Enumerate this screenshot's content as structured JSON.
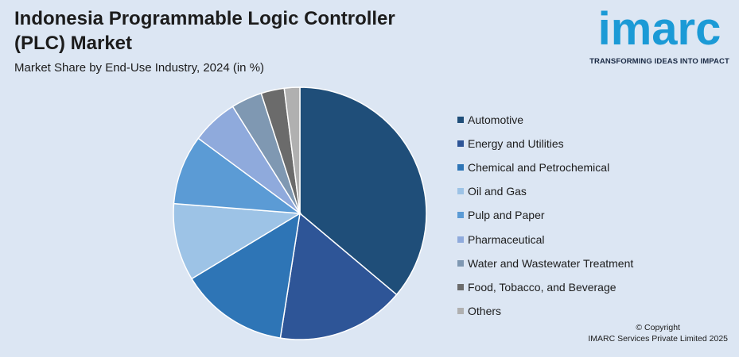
{
  "header": {
    "title_line1": "Indonesia Programmable Logic Controller",
    "title_line2": "(PLC) Market",
    "subtitle": "Market Share by End-Use Industry, 2024 (in %)"
  },
  "logo": {
    "word": "imarc",
    "tagline": "TRANSFORMING IDEAS INTO IMPACT",
    "color": "#1b9ad6"
  },
  "footer": {
    "copyright_line1": "© Copyright",
    "copyright_line2": "IMARC Services Private Limited 2025"
  },
  "chart_data": {
    "type": "pie",
    "title": "Market Share by End-Use Industry, 2024 (in %)",
    "legend_position": "right",
    "series": [
      {
        "name": "Automotive",
        "value": 36.5,
        "color": "#1f4e79"
      },
      {
        "name": "Energy and Utilities",
        "value": 16.5,
        "color": "#2e5597"
      },
      {
        "name": "Chemical and Petrochemical",
        "value": 14.0,
        "color": "#2e75b6"
      },
      {
        "name": "Oil and Gas",
        "value": 10.0,
        "color": "#9dc3e6"
      },
      {
        "name": "Pulp and Paper",
        "value": 9.0,
        "color": "#5b9bd5"
      },
      {
        "name": "Pharmaceutical",
        "value": 6.0,
        "color": "#8faadc"
      },
      {
        "name": "Water and Wastewater Treatment",
        "value": 4.0,
        "color": "#7f98b2"
      },
      {
        "name": "Food, Tobacco, and Beverage",
        "value": 3.0,
        "color": "#6b6b6b"
      },
      {
        "name": "Others",
        "value": 2.0,
        "color": "#b0b0b0"
      }
    ]
  }
}
